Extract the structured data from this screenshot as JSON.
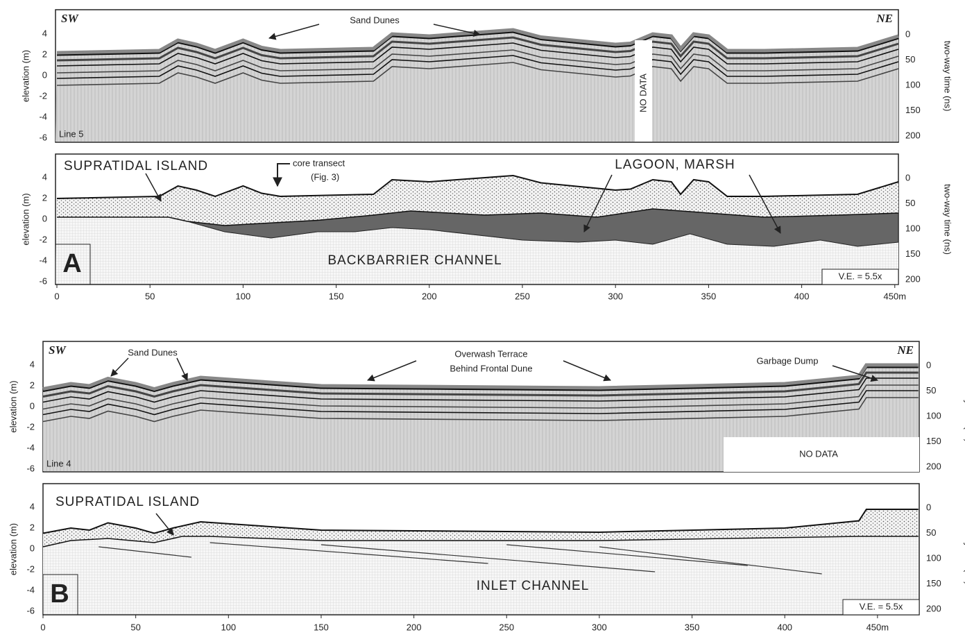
{
  "panel_a": {
    "profile": {
      "label_sw": "SW",
      "label_ne": "NE",
      "annotation": "Sand Dunes",
      "line": "Line 5",
      "no_data": "NO DATA",
      "elevation_label": "elevation (m)",
      "time_label": "two-way time (ns)",
      "elevation_ticks": [
        "4",
        "2",
        "0",
        "-2",
        "-4",
        "-6"
      ],
      "time_ticks": [
        "0",
        "50",
        "100",
        "150",
        "200"
      ]
    },
    "interpretation": {
      "unit_top": "SUPRATIDAL ISLAND",
      "core_transect": "core transect",
      "core_ref": "(Fig. 3)",
      "lagoon": "LAGOON, MARSH",
      "channel": "BACKBARRIER CHANNEL",
      "letter": "A",
      "ve": "V.E. = 5.5x",
      "elevation_label": "elevation (m)",
      "time_label": "two-way time (ns)",
      "elevation_ticks": [
        "4",
        "2",
        "0",
        "-2",
        "-4",
        "-6"
      ],
      "time_ticks": [
        "0",
        "50",
        "100",
        "150",
        "200"
      ]
    },
    "distance_ticks": [
      "0",
      "50",
      "100",
      "150",
      "200",
      "250",
      "300",
      "350",
      "400",
      "450m"
    ]
  },
  "panel_b": {
    "profile": {
      "label_sw": "SW",
      "label_ne": "NE",
      "annotation": "Sand Dunes",
      "terrace_1": "Overwash Terrace",
      "terrace_2": "Behind Frontal Dune",
      "dump": "Garbage Dump",
      "line": "Line 4",
      "no_data": "NO DATA",
      "elevation_label": "elevation (m)",
      "time_label": "two-way time (ns)",
      "elevation_ticks": [
        "4",
        "2",
        "0",
        "-2",
        "-4",
        "-6"
      ],
      "time_ticks": [
        "0",
        "50",
        "100",
        "150",
        "200"
      ]
    },
    "interpretation": {
      "unit_top": "SUPRATIDAL ISLAND",
      "channel": "INLET CHANNEL",
      "letter": "B",
      "ve": "V.E. = 5.5x",
      "elevation_label": "elevation (m)",
      "time_label": "two-way time (ns)",
      "elevation_ticks": [
        "4",
        "2",
        "0",
        "-2",
        "-4",
        "-6"
      ],
      "time_ticks": [
        "0",
        "50",
        "100",
        "150",
        "200"
      ]
    },
    "distance_ticks": [
      "0",
      "50",
      "100",
      "150",
      "200",
      "250",
      "300",
      "350",
      "400",
      "450m"
    ]
  }
}
